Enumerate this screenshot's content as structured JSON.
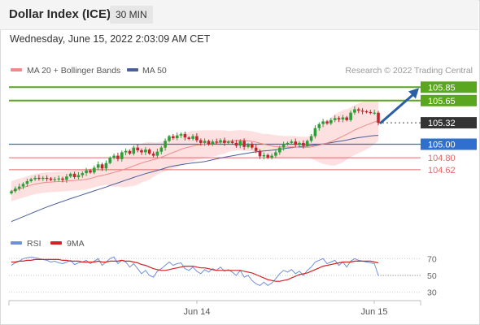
{
  "header": {
    "title": "Dollar Index (ICE)",
    "timeframe": "30 MIN",
    "datetime": "Wednesday, June 15, 2022 2:03:09 AM CET"
  },
  "legend": {
    "ma20_label": "MA 20 + Bollinger Bands",
    "ma50_label": "MA 50",
    "credit": "Research © 2022 Trading Central",
    "rsi_label": "RSI",
    "ma9_label": "9MA"
  },
  "colors": {
    "candle_up": "#2e9e3a",
    "candle_down": "#c0272d",
    "bollinger_fill": "#fde0e0",
    "ma20": "#f08a8a",
    "ma50": "#4a5e9a",
    "resistance": "#5aa61e",
    "pivot": "#2f6fce",
    "support": "#e06a6a",
    "current": "#333333",
    "arrow": "#2b5ea7",
    "rsi": "#6f8fdc",
    "ma9": "#d32222"
  },
  "chart_data": [
    {
      "type": "candlestick",
      "ylim": [
        103.7,
        105.95
      ],
      "x_labels": [
        "Jun 14",
        "Jun 15"
      ],
      "close": [
        104.3,
        104.34,
        104.37,
        104.41,
        104.45,
        104.48,
        104.5,
        104.49,
        104.5,
        104.49,
        104.47,
        104.48,
        104.49,
        104.47,
        104.52,
        104.56,
        104.51,
        104.54,
        104.57,
        104.61,
        104.58,
        104.65,
        104.7,
        104.64,
        104.72,
        104.8,
        104.83,
        104.78,
        104.88,
        104.9,
        104.86,
        104.95,
        104.91,
        104.88,
        104.92,
        104.86,
        104.83,
        104.89,
        104.95,
        105.05,
        105.12,
        105.09,
        105.13,
        105.15,
        105.1,
        105.08,
        105.12,
        105.06,
        105.02,
        105.05,
        105.0,
        105.04,
        105.03,
        105.06,
        105.02,
        105.04,
        105.02,
        104.98,
        105.05,
        104.96,
        105.0,
        104.95,
        104.9,
        104.82,
        104.84,
        104.8,
        104.83,
        104.88,
        104.95,
        105.0,
        105.02,
        105.04,
        104.99,
        105.02,
        104.98,
        105.05,
        105.12,
        105.24,
        105.3,
        105.34,
        105.31,
        105.36,
        105.39,
        105.37,
        105.4,
        105.36,
        105.47,
        105.52,
        105.5,
        105.49,
        105.48,
        105.47,
        105.47,
        105.32
      ]
    },
    {
      "type": "line",
      "name": "RSI",
      "ylim": [
        20,
        80
      ],
      "y_ticks": [
        30,
        50,
        70
      ],
      "values": [
        62,
        65,
        67,
        70,
        71,
        72,
        71,
        70,
        69,
        68,
        66,
        67,
        65,
        64,
        66,
        68,
        63,
        65,
        66,
        68,
        64,
        67,
        70,
        62,
        66,
        70,
        72,
        64,
        68,
        66,
        60,
        64,
        58,
        52,
        56,
        50,
        48,
        55,
        58,
        62,
        66,
        62,
        64,
        65,
        58,
        56,
        60,
        55,
        52,
        57,
        54,
        58,
        56,
        60,
        55,
        57,
        54,
        50,
        56,
        48,
        50,
        44,
        40,
        38,
        42,
        38,
        41,
        46,
        52,
        56,
        54,
        57,
        52,
        55,
        50,
        56,
        60,
        66,
        68,
        70,
        64,
        66,
        68,
        62,
        66,
        60,
        67,
        70,
        68,
        67,
        66,
        65,
        64,
        50
      ],
      "ma9": [
        66,
        66,
        67,
        67,
        68,
        68,
        69,
        69,
        69,
        69,
        69,
        69,
        69,
        68,
        68,
        67,
        67,
        67,
        66,
        66,
        66,
        66,
        67,
        66,
        66,
        67,
        67,
        67,
        68,
        67,
        67,
        66,
        65,
        63,
        62,
        60,
        58,
        57,
        56,
        56,
        57,
        58,
        59,
        60,
        61,
        61,
        61,
        60,
        59,
        59,
        58,
        57,
        56,
        56,
        56,
        56,
        56,
        56,
        56,
        55,
        54,
        53,
        51,
        49,
        47,
        45,
        44,
        43,
        43,
        44,
        45,
        47,
        49,
        51,
        52,
        53,
        55,
        57,
        59,
        61,
        62,
        63,
        64,
        65,
        66,
        66,
        66,
        67,
        67,
        67,
        67,
        67,
        66,
        65
      ]
    }
  ],
  "levels": [
    {
      "label": "105.85",
      "value": 105.85,
      "kind": "resistance"
    },
    {
      "label": "105.65",
      "value": 105.65,
      "kind": "resistance"
    },
    {
      "label": "105.32",
      "value": 105.32,
      "kind": "current"
    },
    {
      "label": "105.00",
      "value": 105.0,
      "kind": "pivot"
    },
    {
      "label": "104.80",
      "value": 104.8,
      "kind": "support"
    },
    {
      "label": "104.62",
      "value": 104.62,
      "kind": "support"
    }
  ]
}
